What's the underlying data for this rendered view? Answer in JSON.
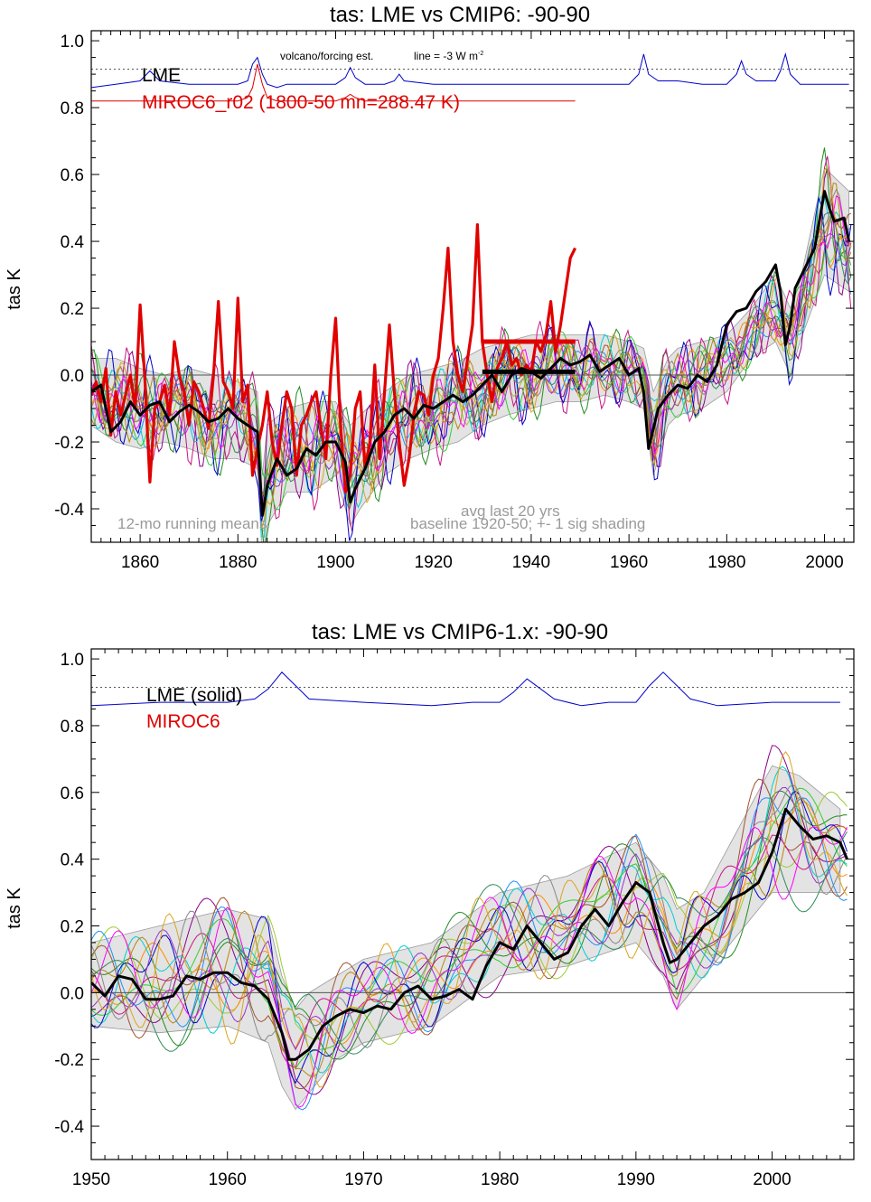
{
  "chart_data": [
    {
      "type": "line",
      "title": "tas: LME vs CMIP6: -90-90",
      "xlabel": "",
      "ylabel": "tas K",
      "xlim": [
        1850,
        2006
      ],
      "ylim": [
        -0.5,
        1.03
      ],
      "x_ticks": [
        1860,
        1880,
        1900,
        1920,
        1940,
        1960,
        1980,
        2000
      ],
      "x_tick_labels": [
        "1860",
        "1880",
        "1900",
        "1920",
        "1940",
        "1960",
        "1980",
        "2000"
      ],
      "y_ticks": [
        -0.4,
        -0.2,
        0.0,
        0.2,
        0.4,
        0.6,
        0.8,
        1.0
      ],
      "y_tick_labels": [
        "-0.4",
        "-0.2",
        "0.0",
        "0.2",
        "0.4",
        "0.6",
        "0.8",
        "1.0"
      ],
      "zero_line": 0,
      "volcano_reference_level": 0.915,
      "legend": [
        {
          "text": "LME",
          "color": "#000000"
        },
        {
          "text": "MIROC6_r02 (1800-50 mn=288.47 K)",
          "color": "#e00000"
        }
      ],
      "annotations": {
        "volcano": "volcano/forcing est.",
        "line_ref": "line = -3 W m",
        "line_ref_sup": "-2",
        "running": "12-mo running means",
        "avg": "avg last 20 yrs",
        "baseline": "baseline 1920-50; +- 1 sig shading"
      },
      "series": [
        {
          "name": "LME",
          "color": "#000000",
          "x": [
            1850,
            1852,
            1854,
            1856,
            1858,
            1860,
            1862,
            1864,
            1866,
            1868,
            1870,
            1872,
            1874,
            1876,
            1878,
            1880,
            1882,
            1884,
            1885,
            1886,
            1888,
            1890,
            1892,
            1894,
            1896,
            1898,
            1900,
            1902,
            1903,
            1904,
            1906,
            1908,
            1910,
            1912,
            1914,
            1916,
            1918,
            1920,
            1922,
            1924,
            1926,
            1928,
            1930,
            1932,
            1934,
            1936,
            1938,
            1940,
            1942,
            1944,
            1946,
            1948,
            1950,
            1952,
            1954,
            1956,
            1958,
            1960,
            1962,
            1963,
            1964,
            1966,
            1968,
            1970,
            1972,
            1974,
            1976,
            1978,
            1980,
            1982,
            1984,
            1986,
            1988,
            1990,
            1991,
            1992,
            1993,
            1994,
            1996,
            1998,
            2000,
            2001,
            2002,
            2004,
            2005
          ],
          "y": [
            -0.05,
            -0.03,
            -0.17,
            -0.14,
            -0.08,
            -0.12,
            -0.09,
            -0.08,
            -0.14,
            -0.11,
            -0.09,
            -0.11,
            -0.14,
            -0.13,
            -0.1,
            -0.13,
            -0.15,
            -0.17,
            -0.42,
            -0.33,
            -0.25,
            -0.3,
            -0.28,
            -0.22,
            -0.24,
            -0.2,
            -0.2,
            -0.26,
            -0.38,
            -0.34,
            -0.28,
            -0.2,
            -0.17,
            -0.12,
            -0.1,
            -0.13,
            -0.09,
            -0.1,
            -0.08,
            -0.06,
            -0.08,
            -0.06,
            -0.03,
            0.0,
            -0.05,
            0.0,
            0.02,
            0.01,
            -0.01,
            0.02,
            0.05,
            0.03,
            0.04,
            0.06,
            0.01,
            0.03,
            0.05,
            0.0,
            0.02,
            -0.05,
            -0.22,
            -0.1,
            -0.06,
            -0.03,
            -0.04,
            0.0,
            -0.02,
            0.03,
            0.15,
            0.19,
            0.2,
            0.25,
            0.28,
            0.33,
            0.25,
            0.09,
            0.15,
            0.26,
            0.32,
            0.38,
            0.55,
            0.5,
            0.46,
            0.47,
            0.4
          ]
        },
        {
          "name": "MIROC6_r02 (1800-50 mn=288.47 K)",
          "color": "#e00000",
          "x": [
            1850,
            1851,
            1852,
            1853,
            1854,
            1855,
            1856,
            1857,
            1858,
            1859,
            1860,
            1861,
            1862,
            1863,
            1864,
            1865,
            1866,
            1867,
            1868,
            1869,
            1870,
            1871,
            1872,
            1873,
            1874,
            1875,
            1876,
            1877,
            1878,
            1879,
            1880,
            1881,
            1882,
            1883,
            1884,
            1885,
            1886,
            1887,
            1888,
            1889,
            1890,
            1891,
            1892,
            1893,
            1894,
            1895,
            1896,
            1897,
            1898,
            1899,
            1900,
            1901,
            1902,
            1903,
            1904,
            1905,
            1906,
            1907,
            1908,
            1909,
            1910,
            1911,
            1912,
            1913,
            1914,
            1915,
            1916,
            1917,
            1918,
            1919,
            1920,
            1921,
            1922,
            1923,
            1924,
            1925,
            1926,
            1927,
            1928,
            1929,
            1930,
            1931,
            1932,
            1933,
            1934,
            1935,
            1936,
            1937,
            1938,
            1939,
            1940,
            1941,
            1942,
            1943,
            1944,
            1945,
            1946,
            1947,
            1948,
            1949
          ],
          "y": [
            -0.06,
            -0.02,
            -0.08,
            0.02,
            -0.18,
            -0.05,
            -0.12,
            -0.06,
            0.0,
            -0.1,
            0.21,
            -0.02,
            -0.32,
            -0.1,
            -0.08,
            -0.03,
            -0.12,
            0.1,
            0.0,
            -0.05,
            -0.15,
            -0.02,
            -0.05,
            -0.1,
            -0.16,
            0.0,
            0.22,
            -0.02,
            -0.05,
            -0.1,
            0.23,
            -0.08,
            -0.03,
            -0.3,
            -0.22,
            -0.15,
            -0.05,
            -0.2,
            -0.27,
            -0.15,
            -0.05,
            -0.1,
            -0.3,
            -0.15,
            -0.12,
            -0.08,
            -0.05,
            -0.16,
            -0.25,
            0.0,
            0.17,
            -0.15,
            -0.35,
            -0.3,
            -0.1,
            -0.05,
            -0.28,
            -0.2,
            0.03,
            -0.25,
            -0.05,
            0.15,
            -0.05,
            -0.2,
            -0.33,
            -0.25,
            -0.12,
            -0.05,
            -0.06,
            -0.12,
            0.0,
            0.05,
            0.2,
            0.38,
            0.1,
            0.0,
            -0.05,
            0.05,
            0.15,
            0.45,
            0.1,
            0.0,
            -0.08,
            0.02,
            0.05,
            0.1,
            0.03,
            0.05,
            0.0,
            0.03,
            0.01,
            0.1,
            0.07,
            0.12,
            0.22,
            0.07,
            0.15,
            0.25,
            0.35,
            0.38
          ]
        }
      ],
      "avg_last_20_bars": [
        {
          "series": "MIROC6_r02 (1800-50 mn=288.47 K)",
          "x": [
            1930,
            1949
          ],
          "value": 0.1,
          "color": "#e00000"
        },
        {
          "series": "LME",
          "x": [
            1930,
            1949
          ],
          "value": 0.01,
          "color": "#000000"
        }
      ],
      "volcano_forcing": [
        {
          "series": "LME",
          "color": "#0000c8",
          "x": [
            1850,
            1855,
            1860,
            1862,
            1864,
            1870,
            1880,
            1882,
            1883,
            1884,
            1885,
            1886,
            1888,
            1890,
            1895,
            1900,
            1902,
            1903,
            1904,
            1906,
            1910,
            1912,
            1913,
            1914,
            1920,
            1930,
            1940,
            1950,
            1960,
            1962,
            1963,
            1964,
            1966,
            1970,
            1975,
            1980,
            1982,
            1983,
            1984,
            1986,
            1990,
            1991,
            1992,
            1993,
            1995,
            2000,
            2005
          ],
          "y": [
            0.86,
            0.87,
            0.88,
            0.91,
            0.88,
            0.87,
            0.87,
            0.88,
            0.93,
            0.95,
            0.9,
            0.87,
            0.86,
            0.87,
            0.87,
            0.87,
            0.89,
            0.92,
            0.89,
            0.87,
            0.87,
            0.88,
            0.9,
            0.88,
            0.87,
            0.87,
            0.87,
            0.87,
            0.87,
            0.9,
            0.96,
            0.9,
            0.88,
            0.88,
            0.87,
            0.87,
            0.9,
            0.94,
            0.9,
            0.88,
            0.88,
            0.91,
            0.96,
            0.9,
            0.87,
            0.87,
            0.87
          ]
        },
        {
          "series": "MIROC6_r02 (1800-50 mn=288.47 K)",
          "color": "#e00000",
          "x": [
            1850,
            1855,
            1860,
            1870,
            1880,
            1882,
            1883,
            1884,
            1885,
            1886,
            1888,
            1895,
            1900,
            1902,
            1903,
            1904,
            1906,
            1910,
            1912,
            1913,
            1914,
            1920,
            1930,
            1940,
            1949
          ],
          "y": [
            0.82,
            0.82,
            0.82,
            0.82,
            0.82,
            0.83,
            0.86,
            0.93,
            0.87,
            0.83,
            0.82,
            0.82,
            0.82,
            0.83,
            0.84,
            0.83,
            0.82,
            0.82,
            0.82,
            0.83,
            0.82,
            0.82,
            0.82,
            0.82,
            0.82
          ]
        }
      ],
      "spread_band": {
        "x": [
          1850,
          1855,
          1860,
          1865,
          1870,
          1875,
          1880,
          1884,
          1885,
          1886,
          1890,
          1895,
          1900,
          1903,
          1905,
          1910,
          1915,
          1920,
          1925,
          1930,
          1935,
          1940,
          1945,
          1950,
          1955,
          1960,
          1963,
          1965,
          1968,
          1970,
          1975,
          1980,
          1985,
          1990,
          1993,
          1995,
          2000,
          2005
        ],
        "upper": [
          0.05,
          0.05,
          0.02,
          0.0,
          0.02,
          0.0,
          -0.02,
          -0.05,
          -0.3,
          -0.15,
          -0.1,
          -0.08,
          -0.08,
          -0.15,
          -0.12,
          -0.05,
          0.0,
          0.02,
          0.04,
          0.08,
          0.1,
          0.12,
          0.12,
          0.12,
          0.12,
          0.1,
          0.08,
          -0.05,
          0.05,
          0.08,
          0.1,
          0.12,
          0.2,
          0.3,
          0.2,
          0.28,
          0.62,
          0.55
        ],
        "lower": [
          -0.15,
          -0.2,
          -0.22,
          -0.2,
          -0.22,
          -0.25,
          -0.25,
          -0.28,
          -0.55,
          -0.45,
          -0.35,
          -0.35,
          -0.3,
          -0.45,
          -0.4,
          -0.3,
          -0.25,
          -0.22,
          -0.2,
          -0.15,
          -0.12,
          -0.1,
          -0.08,
          -0.08,
          -0.06,
          -0.08,
          -0.1,
          -0.3,
          -0.15,
          -0.12,
          -0.1,
          -0.05,
          0.05,
          0.1,
          0.0,
          0.1,
          0.3,
          0.25
        ]
      }
    },
    {
      "type": "line",
      "title": "tas: LME vs CMIP6-1.x: -90-90",
      "xlabel": "",
      "ylabel": "tas K",
      "xlim": [
        1950,
        2006
      ],
      "ylim": [
        -0.5,
        1.03
      ],
      "x_ticks": [
        1950,
        1960,
        1970,
        1980,
        1990,
        2000
      ],
      "x_tick_labels": [
        "1950",
        "1960",
        "1970",
        "1980",
        "1990",
        "2000"
      ],
      "y_ticks": [
        -0.4,
        -0.2,
        0.0,
        0.2,
        0.4,
        0.6,
        0.8,
        1.0
      ],
      "y_tick_labels": [
        "-0.4",
        "-0.2",
        "0.0",
        "0.2",
        "0.4",
        "0.6",
        "0.8",
        "1.0"
      ],
      "zero_line": 0,
      "volcano_reference_level": 0.915,
      "legend": [
        {
          "text": "LME (solid)",
          "color": "#000000"
        },
        {
          "text": "MIROC6",
          "color": "#e00000"
        }
      ],
      "series": [
        {
          "name": "LME (solid)",
          "color": "#000000",
          "x": [
            1950,
            1951,
            1952,
            1953,
            1954,
            1955,
            1956,
            1957,
            1958,
            1959,
            1960,
            1961,
            1962,
            1963,
            1964,
            1964.5,
            1965,
            1966,
            1967,
            1968,
            1969,
            1970,
            1971,
            1972,
            1973,
            1974,
            1975,
            1976,
            1977,
            1978,
            1979,
            1980,
            1981,
            1982,
            1983,
            1984,
            1985,
            1986,
            1987,
            1988,
            1989,
            1990,
            1991,
            1992,
            1992.5,
            1993,
            1994,
            1995,
            1996,
            1997,
            1998,
            1999,
            2000,
            2001,
            2002,
            2003,
            2004,
            2005,
            2005.5
          ],
          "y": [
            0.03,
            -0.01,
            0.05,
            0.04,
            -0.02,
            -0.02,
            -0.01,
            0.05,
            0.04,
            0.06,
            0.06,
            0.03,
            0.02,
            -0.02,
            -0.12,
            -0.2,
            -0.2,
            -0.17,
            -0.1,
            -0.07,
            -0.05,
            -0.06,
            -0.04,
            -0.05,
            0.0,
            0.02,
            -0.02,
            -0.01,
            0.01,
            -0.02,
            0.08,
            0.15,
            0.13,
            0.2,
            0.15,
            0.1,
            0.12,
            0.2,
            0.25,
            0.2,
            0.27,
            0.33,
            0.3,
            0.15,
            0.09,
            0.1,
            0.15,
            0.2,
            0.23,
            0.28,
            0.3,
            0.33,
            0.42,
            0.55,
            0.5,
            0.46,
            0.47,
            0.45,
            0.4
          ]
        }
      ],
      "volcano_forcing": [
        {
          "series": "LME (solid)",
          "color": "#0000c8",
          "x": [
            1950,
            1955,
            1960,
            1962,
            1963,
            1964,
            1965,
            1966,
            1970,
            1975,
            1978,
            1980,
            1981,
            1982,
            1983,
            1984,
            1986,
            1988,
            1990,
            1991,
            1992,
            1993,
            1994,
            1996,
            2000,
            2005
          ],
          "y": [
            0.86,
            0.87,
            0.87,
            0.88,
            0.91,
            0.96,
            0.92,
            0.88,
            0.87,
            0.86,
            0.87,
            0.87,
            0.9,
            0.94,
            0.91,
            0.88,
            0.86,
            0.87,
            0.87,
            0.92,
            0.96,
            0.92,
            0.88,
            0.86,
            0.87,
            0.87
          ]
        }
      ],
      "spread_band": {
        "x": [
          1950,
          1955,
          1960,
          1963,
          1964,
          1965,
          1966,
          1968,
          1970,
          1975,
          1980,
          1985,
          1990,
          1992,
          1993,
          1995,
          2000,
          2002,
          2005
        ],
        "upper": [
          0.15,
          0.2,
          0.25,
          0.22,
          0.05,
          -0.05,
          0.0,
          0.05,
          0.1,
          0.15,
          0.3,
          0.35,
          0.45,
          0.35,
          0.25,
          0.3,
          0.68,
          0.65,
          0.55
        ],
        "lower": [
          -0.1,
          -0.12,
          -0.1,
          -0.15,
          -0.28,
          -0.35,
          -0.3,
          -0.2,
          -0.15,
          -0.1,
          0.05,
          0.08,
          0.15,
          0.05,
          -0.05,
          0.05,
          0.3,
          0.3,
          0.3
        ]
      }
    }
  ]
}
